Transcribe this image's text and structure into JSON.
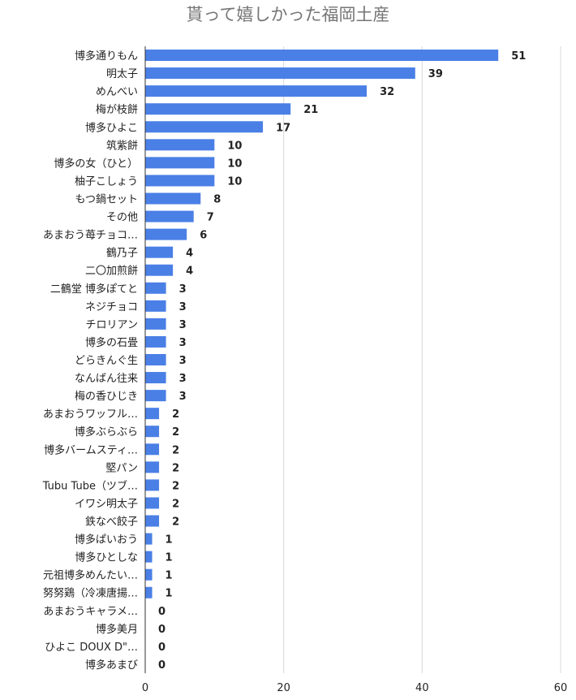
{
  "chart_data": {
    "type": "bar",
    "orientation": "horizontal",
    "title": "貰って嬉しかった福岡土産",
    "categories": [
      "博多通りもん",
      "明太子",
      "めんべい",
      "梅が枝餅",
      "博多ひよこ",
      "筑紫餅",
      "博多の女（ひと）",
      "柚子こしょう",
      "もつ鍋セット",
      "その他",
      "あまおう苺チョコ…",
      "鶴乃子",
      "二〇加煎餅",
      "二鶴堂 博多ぽてと",
      "ネジチョコ",
      "チロリアン",
      "博多の石畳",
      "どらきんぐ生",
      "なんばん往来",
      "梅の香ひじき",
      "あまおうワッフル…",
      "博多ぶらぶら",
      "博多バームスティ…",
      "堅パン",
      "Tubu Tube（ツブ…",
      "イワシ明太子",
      "鉄なべ餃子",
      "博多ぱいおう",
      "博多ひとしな",
      "元祖博多めんたい…",
      "努努鶏（冷凍唐揚…",
      "あまおうキャラメ…",
      "博多美月",
      "ひよこ DOUX D\"…",
      "博多あまび"
    ],
    "values": [
      51,
      39,
      32,
      21,
      17,
      10,
      10,
      10,
      8,
      7,
      6,
      4,
      4,
      3,
      3,
      3,
      3,
      3,
      3,
      3,
      2,
      2,
      2,
      2,
      2,
      2,
      2,
      1,
      1,
      1,
      1,
      0,
      0,
      0,
      0
    ],
    "xlim": [
      0,
      60
    ],
    "xticks": [
      0,
      20,
      40,
      60
    ],
    "grid": "vertical",
    "bar_color": "#4a7fe6"
  }
}
